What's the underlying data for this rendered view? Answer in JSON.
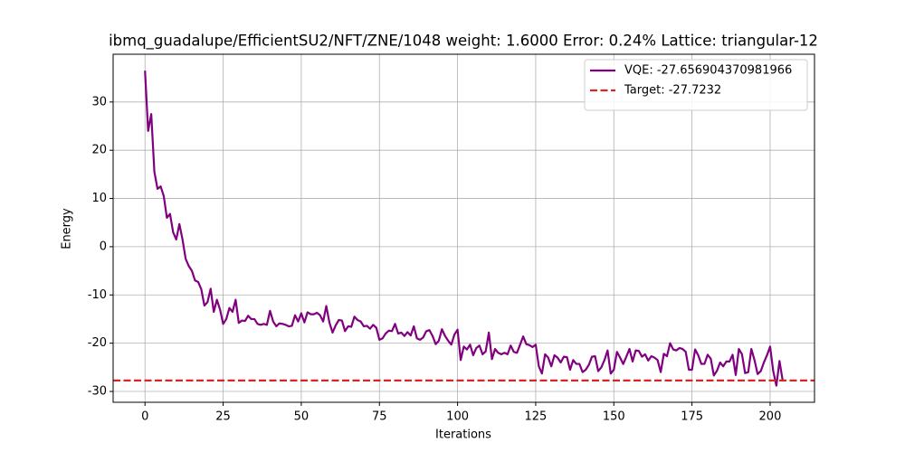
{
  "chart_data": {
    "type": "line",
    "title": "ibmq_guadalupe/EfficientSU2/NFT/ZNE/1048 weight: 1.6000 Error: 0.24% Lattice: triangular-12",
    "x_label": "Iterations",
    "y_label": "Energy",
    "x": [
      0,
      1,
      2,
      3,
      4,
      5,
      6,
      7,
      8,
      9,
      10,
      11,
      12,
      13,
      14,
      15,
      16,
      17,
      18,
      19,
      20,
      21,
      22,
      23,
      24,
      25,
      26,
      27,
      28,
      29,
      30,
      31,
      32,
      33,
      34,
      35,
      36,
      37,
      38,
      39,
      40,
      41,
      42,
      43,
      44,
      45,
      46,
      47,
      48,
      49,
      50,
      51,
      52,
      53,
      54,
      55,
      56,
      57,
      58,
      59,
      60,
      61,
      62,
      63,
      64,
      65,
      66,
      67,
      68,
      69,
      70,
      71,
      72,
      73,
      74,
      75,
      76,
      77,
      78,
      79,
      80,
      81,
      82,
      83,
      84,
      85,
      86,
      87,
      88,
      89,
      90,
      91,
      92,
      93,
      94,
      95,
      96,
      97,
      98,
      99,
      100,
      101,
      102,
      103,
      104,
      105,
      106,
      107,
      108,
      109,
      110,
      111,
      112,
      113,
      114,
      115,
      116,
      117,
      118,
      119,
      120,
      121,
      122,
      123,
      124,
      125,
      126,
      127,
      128,
      129,
      130,
      131,
      132,
      133,
      134,
      135,
      136,
      137,
      138,
      139,
      140,
      141,
      142,
      143,
      144,
      145,
      146,
      147,
      148,
      149,
      150,
      151,
      152,
      153,
      154,
      155,
      156,
      157,
      158,
      159,
      160,
      161,
      162,
      163,
      164,
      165,
      166,
      167,
      168,
      169,
      170,
      171,
      172,
      173,
      174,
      175,
      176,
      177,
      178,
      179,
      180,
      181,
      182,
      183,
      184,
      185,
      186,
      187,
      188,
      189,
      190,
      191,
      192,
      193,
      194,
      195,
      196,
      197,
      198,
      199,
      200,
      201,
      202,
      203,
      204
    ],
    "series": [
      {
        "name": "VQE: -27.656904370981966",
        "color": "#800080",
        "values": [
          36.5,
          24,
          27.5,
          15.5,
          12,
          12.5,
          10.5,
          6,
          6.8,
          3,
          1.5,
          4.7,
          1.5,
          -2.5,
          -4,
          -5,
          -7,
          -7.3,
          -8.8,
          -12.2,
          -11.5,
          -8.7,
          -13.5,
          -11,
          -13,
          -16,
          -15,
          -12.7,
          -13.5,
          -11,
          -15.8,
          -15.3,
          -15.4,
          -14.3,
          -15,
          -15,
          -16,
          -16.2,
          -16,
          -16.2,
          -13.3,
          -15.5,
          -16.5,
          -15.9,
          -16,
          -16.2,
          -16.5,
          -16.4,
          -14.2,
          -15.5,
          -13.8,
          -15.7,
          -13.6,
          -14,
          -14,
          -13.7,
          -14.2,
          -15.5,
          -12.3,
          -15.7,
          -17.8,
          -16.3,
          -15.2,
          -15.3,
          -17.5,
          -16.5,
          -16.6,
          -14.5,
          -15.2,
          -15.5,
          -16.5,
          -16.4,
          -17,
          -16.2,
          -16.8,
          -19.3,
          -19,
          -18,
          -17.4,
          -17.5,
          -16,
          -18,
          -17.8,
          -18.5,
          -17.7,
          -18.4,
          -16.5,
          -19,
          -19.3,
          -18.8,
          -17.5,
          -17.3,
          -18.5,
          -20.2,
          -19.5,
          -17.1,
          -18.5,
          -19.5,
          -20.3,
          -18.2,
          -17.2,
          -23.5,
          -20.7,
          -21.3,
          -20.3,
          -22.5,
          -21,
          -20.5,
          -22.3,
          -21.7,
          -17.8,
          -23.3,
          -21.2,
          -22,
          -22.3,
          -22,
          -22.3,
          -20.5,
          -21.8,
          -22,
          -20.3,
          -18.6,
          -20.2,
          -20.4,
          -20.8,
          -20.3,
          -24.8,
          -26.3,
          -22.3,
          -23,
          -24.8,
          -22.5,
          -23,
          -24,
          -22.8,
          -22.9,
          -25.5,
          -23.5,
          -24.3,
          -24.3,
          -26,
          -25.5,
          -24.5,
          -22.8,
          -22.7,
          -25.8,
          -25,
          -23.5,
          -21.5,
          -26.3,
          -25.5,
          -21.8,
          -23,
          -24.3,
          -22.8,
          -21.2,
          -23.8,
          -21.5,
          -21.6,
          -22.8,
          -22.3,
          -23.6,
          -22.7,
          -23,
          -23.5,
          -26,
          -22.2,
          -22.7,
          -20,
          -21.3,
          -21.5,
          -21,
          -21.2,
          -21.8,
          -25.5,
          -25.5,
          -21.3,
          -22.5,
          -24.3,
          -24.3,
          -22.4,
          -23.2,
          -26.7,
          -25.7,
          -24,
          -24.8,
          -23.8,
          -23.8,
          -22.4,
          -26.6,
          -21.2,
          -22.3,
          -26.2,
          -26,
          -21.2,
          -23.5,
          -26.4,
          -25.8,
          -24,
          -22.5,
          -20.7,
          -25.8,
          -28.8,
          -23.7,
          -27.66
        ]
      }
    ],
    "target": {
      "name": "Target: -27.7232",
      "value": -27.7232,
      "color": "#d62728"
    },
    "xlim": [
      -10.2,
      214.2
    ],
    "ylim": [
      -32.25,
      39.9
    ],
    "xticks": [
      0,
      25,
      50,
      75,
      100,
      125,
      150,
      175,
      200
    ],
    "yticks": [
      -30,
      -20,
      -10,
      0,
      10,
      20,
      30
    ],
    "grid": true,
    "legend": "upper right"
  }
}
